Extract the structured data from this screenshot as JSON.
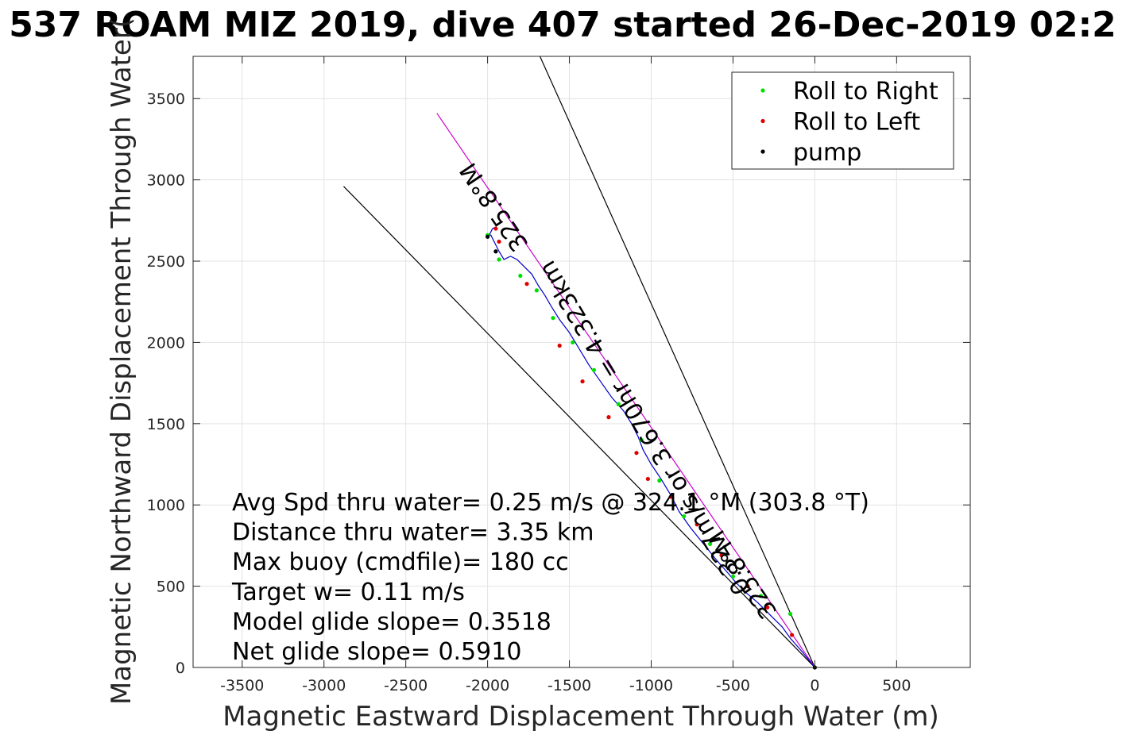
{
  "chart_data": {
    "type": "scatter",
    "title": "537 ROAM MIZ 2019, dive 407 started 26-Dec-2019 02:2",
    "xlabel": "Magnetic Eastward Displacement Through Water (m)",
    "ylabel": "Magnetic Northward Displacement Through Water(",
    "xlim": [
      -3800,
      950
    ],
    "ylim": [
      0,
      3760
    ],
    "xticks": [
      -3500,
      -3000,
      -2500,
      -2000,
      -1500,
      -1000,
      -500,
      0,
      500
    ],
    "yticks": [
      0,
      500,
      1000,
      1500,
      2000,
      2500,
      3000,
      3500
    ],
    "grid": true,
    "legend": {
      "placement": "top-right",
      "entries": [
        {
          "label": "Roll to Right",
          "color": "#00e000"
        },
        {
          "label": "Roll to Left",
          "color": "#e00000"
        },
        {
          "label": "pump",
          "color": "#000000"
        }
      ]
    },
    "reference_lines": [
      {
        "name": "",
        "color": "#000000",
        "x": [
          0,
          -1680
        ],
        "y": [
          0,
          3760
        ]
      },
      {
        "name": "",
        "color": "#000000",
        "x": [
          0,
          -2880
        ],
        "y": [
          0,
          2960
        ]
      },
      {
        "name": "",
        "color": "#cc00cc",
        "x": [
          0,
          -2310
        ],
        "y": [
          0,
          3410
        ]
      }
    ],
    "track": {
      "color": "#0000cc",
      "x": [
        0,
        -80,
        -150,
        -200,
        -280,
        -350,
        -420,
        -480,
        -530,
        -600,
        -680,
        -760,
        -830,
        -880,
        -940,
        -1000,
        -1050,
        -1080,
        -1120,
        -1170,
        -1240,
        -1310,
        -1380,
        -1440,
        -1500,
        -1560,
        -1610,
        -1650,
        -1690,
        -1730,
        -1780,
        -1820,
        -1860,
        -1900,
        -1930,
        -1960,
        -1980,
        -1990,
        -1970,
        -1950
      ],
      "y": [
        0,
        100,
        180,
        250,
        330,
        400,
        460,
        520,
        580,
        660,
        760,
        860,
        960,
        1060,
        1160,
        1250,
        1340,
        1420,
        1500,
        1580,
        1660,
        1760,
        1860,
        1960,
        2060,
        2140,
        2220,
        2290,
        2350,
        2420,
        2470,
        2510,
        2530,
        2510,
        2560,
        2620,
        2660,
        2660,
        2700,
        2710
      ]
    },
    "roll_right_points": {
      "x": [
        -150,
        -330,
        -500,
        -640,
        -800,
        -950,
        -1060,
        -1200,
        -1350,
        -1480,
        -1600,
        -1700,
        -1800,
        -1930,
        -2000
      ],
      "y": [
        330,
        440,
        560,
        760,
        930,
        1150,
        1400,
        1620,
        1830,
        2000,
        2150,
        2320,
        2410,
        2510,
        2660
      ]
    },
    "roll_left_points": {
      "x": [
        -140,
        -290,
        -410,
        -570,
        -720,
        -880,
        -1020,
        -1090,
        -1260,
        -1420,
        -1560,
        -1760,
        -1950,
        -1930
      ],
      "y": [
        200,
        370,
        500,
        690,
        880,
        1050,
        1160,
        1320,
        1540,
        1760,
        1980,
        2360,
        2700,
        2620
      ]
    },
    "pump_points": {
      "x": [
        0,
        -2000,
        -1950
      ],
      "y": [
        0,
        2650,
        2560
      ]
    },
    "rotated_labels": [
      {
        "text": "325.8°M",
        "x": -1920,
        "y": 2860,
        "angle": 56
      },
      {
        "text": "325.8°M",
        "x": -400,
        "y": 600,
        "angle": 56
      },
      {
        "text": "0.327m/s or 3.670hr = 4.323km",
        "x": -1000,
        "y": 1500,
        "angle": 59
      }
    ],
    "annotations": [
      "Avg Spd thru water=  0.25 m/s @ 324.1 °M (303.8 °T)",
      "Distance thru water=  3.35 km",
      "Max buoy (cmdfile)= 180 cc",
      "Target w= 0.11 m/s",
      "Model glide slope= 0.3518",
      "Net glide slope= 0.5910"
    ]
  }
}
